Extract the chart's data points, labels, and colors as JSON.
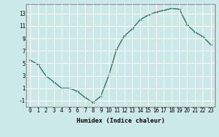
{
  "xlabel": "Humidex (Indice chaleur)",
  "ylabel": "",
  "x_values": [
    0,
    1,
    2,
    3,
    4,
    5,
    6,
    7,
    8,
    9,
    10,
    11,
    12,
    13,
    14,
    15,
    16,
    17,
    18,
    19,
    20,
    21,
    22,
    23
  ],
  "y_values": [
    5.5,
    4.8,
    3.0,
    2.0,
    1.0,
    1.0,
    0.5,
    -0.5,
    -1.3,
    -0.3,
    3.0,
    7.2,
    9.4,
    10.5,
    12.0,
    12.7,
    13.2,
    13.5,
    13.8,
    13.7,
    11.2,
    10.0,
    9.3,
    8.0
  ],
  "line_color": "#2d6e5e",
  "marker": "+",
  "marker_size": 3,
  "bg_color": "#cce8e8",
  "grid_color": "#ffffff",
  "ylim": [
    -2,
    14.5
  ],
  "xlim": [
    -0.5,
    23.5
  ],
  "yticks": [
    -1,
    1,
    3,
    5,
    7,
    9,
    11,
    13
  ],
  "xticks": [
    0,
    1,
    2,
    3,
    4,
    5,
    6,
    7,
    8,
    9,
    10,
    11,
    12,
    13,
    14,
    15,
    16,
    17,
    18,
    19,
    20,
    21,
    22,
    23
  ],
  "tick_fontsize": 5.5,
  "label_fontsize": 6.5,
  "linewidth": 1.0,
  "marker_color": "#2d6e5e"
}
